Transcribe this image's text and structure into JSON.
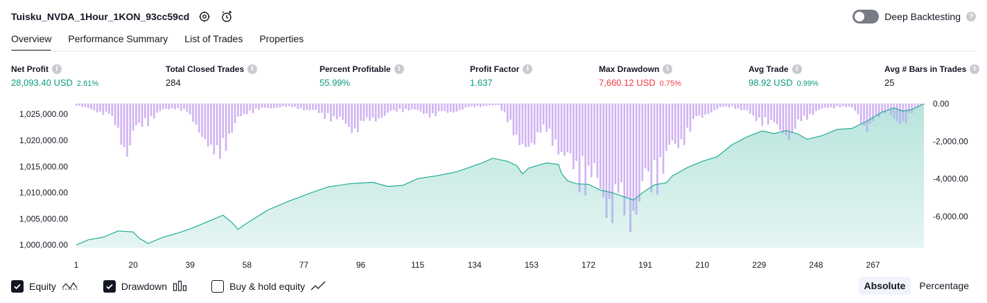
{
  "header": {
    "title": "Tuisku_NVDA_1Hour_1KON_93cc59cd",
    "deep_backtesting_label": "Deep Backtesting",
    "help_glyph": "?"
  },
  "tabs": [
    {
      "label": "Overview",
      "active": true
    },
    {
      "label": "Performance Summary",
      "active": false
    },
    {
      "label": "List of Trades",
      "active": false
    },
    {
      "label": "Properties",
      "active": false
    }
  ],
  "metrics": {
    "info_glyph": "i",
    "net_profit": {
      "label": "Net Profit",
      "value": "28,093.40 USD",
      "pct": "2.81%"
    },
    "total_closed_trades": {
      "label": "Total Closed Trades",
      "value": "284"
    },
    "percent_profitable": {
      "label": "Percent Profitable",
      "value": "55.99%"
    },
    "profit_factor": {
      "label": "Profit Factor",
      "value": "1.637"
    },
    "max_drawdown": {
      "label": "Max Drawdown",
      "value": "7,660.12 USD",
      "pct": "0.75%"
    },
    "avg_trade": {
      "label": "Avg Trade",
      "value": "98.92 USD",
      "pct": "0.99%"
    },
    "avg_bars": {
      "label": "Avg # Bars in Trades",
      "value": "25"
    }
  },
  "colors": {
    "positive": "#089981",
    "negative": "#f23645",
    "equity_line": "#22ab94",
    "drawdown_bar": "#d1b3f2",
    "drawdown_overlap": "#b6b9ec"
  },
  "chart_data": {
    "type": "area",
    "trade_count": 284,
    "x_ticks": [
      "1",
      "20",
      "39",
      "58",
      "77",
      "96",
      "115",
      "134",
      "153",
      "172",
      "191",
      "210",
      "229",
      "248",
      "267"
    ],
    "left_axis": {
      "ticks": [
        "1,025,000.00",
        "1,020,000.00",
        "1,015,000.00",
        "1,010,000.00",
        "1,005,000.00",
        "1,000,000.00"
      ],
      "range": [
        999500,
        1027000
      ]
    },
    "right_axis": {
      "ticks": [
        "0.00",
        "-2,000.00",
        "-4,000.00",
        "-6,000.00"
      ],
      "range": [
        -7660,
        0
      ]
    },
    "equity_points": [
      [
        1,
        1000000
      ],
      [
        5,
        1001000
      ],
      [
        10,
        1001500
      ],
      [
        15,
        1002700
      ],
      [
        20,
        1002500
      ],
      [
        22,
        1001300
      ],
      [
        25,
        1000300
      ],
      [
        30,
        1001500
      ],
      [
        35,
        1002300
      ],
      [
        40,
        1003300
      ],
      [
        45,
        1004500
      ],
      [
        50,
        1005700
      ],
      [
        53,
        1004300
      ],
      [
        55,
        1003000
      ],
      [
        58,
        1004200
      ],
      [
        65,
        1006700
      ],
      [
        72,
        1008400
      ],
      [
        80,
        1010100
      ],
      [
        85,
        1011100
      ],
      [
        92,
        1011700
      ],
      [
        100,
        1012000
      ],
      [
        105,
        1011200
      ],
      [
        110,
        1011400
      ],
      [
        115,
        1012700
      ],
      [
        122,
        1013300
      ],
      [
        128,
        1014000
      ],
      [
        133,
        1015000
      ],
      [
        137,
        1015800
      ],
      [
        140,
        1016600
      ],
      [
        145,
        1016000
      ],
      [
        148,
        1015200
      ],
      [
        150,
        1013600
      ],
      [
        152,
        1014700
      ],
      [
        158,
        1015700
      ],
      [
        162,
        1015400
      ],
      [
        163,
        1013700
      ],
      [
        165,
        1012300
      ],
      [
        168,
        1011700
      ],
      [
        172,
        1011600
      ],
      [
        176,
        1010500
      ],
      [
        180,
        1010000
      ],
      [
        184,
        1009200
      ],
      [
        187,
        1008600
      ],
      [
        190,
        1010000
      ],
      [
        194,
        1011500
      ],
      [
        198,
        1011900
      ],
      [
        200,
        1013200
      ],
      [
        205,
        1014800
      ],
      [
        210,
        1016000
      ],
      [
        215,
        1016900
      ],
      [
        220,
        1019200
      ],
      [
        225,
        1020700
      ],
      [
        230,
        1021800
      ],
      [
        234,
        1021300
      ],
      [
        238,
        1021900
      ],
      [
        242,
        1021200
      ],
      [
        245,
        1020200
      ],
      [
        250,
        1020900
      ],
      [
        255,
        1022100
      ],
      [
        260,
        1022300
      ],
      [
        265,
        1023700
      ],
      [
        270,
        1025400
      ],
      [
        274,
        1026200
      ],
      [
        277,
        1025600
      ],
      [
        280,
        1025900
      ],
      [
        284,
        1027000
      ]
    ],
    "drawdown_points": [
      [
        1,
        -100
      ],
      [
        4,
        -300
      ],
      [
        8,
        -500
      ],
      [
        12,
        -800
      ],
      [
        15,
        -1900
      ],
      [
        18,
        -3300
      ],
      [
        20,
        -2200
      ],
      [
        23,
        -1500
      ],
      [
        25,
        -1200
      ],
      [
        28,
        -700
      ],
      [
        31,
        -400
      ],
      [
        34,
        -300
      ],
      [
        37,
        -500
      ],
      [
        40,
        -1200
      ],
      [
        43,
        -2000
      ],
      [
        45,
        -2900
      ],
      [
        47,
        -4500
      ],
      [
        49,
        -3300
      ],
      [
        52,
        -2200
      ],
      [
        55,
        -1200
      ],
      [
        58,
        -600
      ],
      [
        62,
        -400
      ],
      [
        66,
        -300
      ],
      [
        70,
        -200
      ],
      [
        75,
        -300
      ],
      [
        80,
        -500
      ],
      [
        85,
        -900
      ],
      [
        90,
        -1300
      ],
      [
        94,
        -1800
      ],
      [
        97,
        -1400
      ],
      [
        100,
        -1100
      ],
      [
        104,
        -800
      ],
      [
        108,
        -500
      ],
      [
        112,
        -400
      ],
      [
        116,
        -600
      ],
      [
        120,
        -800
      ],
      [
        125,
        -600
      ],
      [
        130,
        -400
      ],
      [
        134,
        -200
      ],
      [
        138,
        -150
      ],
      [
        142,
        -100
      ],
      [
        145,
        -1000
      ],
      [
        147,
        -2100
      ],
      [
        149,
        -3600
      ],
      [
        151,
        -2800
      ],
      [
        154,
        -2400
      ],
      [
        157,
        -2000
      ],
      [
        160,
        -2400
      ],
      [
        162,
        -2900
      ],
      [
        164,
        -3800
      ],
      [
        166,
        -4500
      ],
      [
        168,
        -4700
      ],
      [
        171,
        -5100
      ],
      [
        174,
        -5700
      ],
      [
        177,
        -6200
      ],
      [
        179,
        -6900
      ],
      [
        182,
        -7400
      ],
      [
        184,
        -7660
      ],
      [
        186,
        -7300
      ],
      [
        188,
        -6900
      ],
      [
        190,
        -6400
      ],
      [
        192,
        -6000
      ],
      [
        194,
        -5200
      ],
      [
        196,
        -4500
      ],
      [
        199,
        -3500
      ],
      [
        202,
        -2800
      ],
      [
        205,
        -2000
      ],
      [
        208,
        -1200
      ],
      [
        212,
        -600
      ],
      [
        216,
        -300
      ],
      [
        220,
        -200
      ],
      [
        224,
        -500
      ],
      [
        227,
        -900
      ],
      [
        230,
        -1200
      ],
      [
        233,
        -1500
      ],
      [
        236,
        -1700
      ],
      [
        238,
        -2000
      ],
      [
        240,
        -2300
      ],
      [
        242,
        -1500
      ],
      [
        245,
        -900
      ],
      [
        248,
        -500
      ],
      [
        252,
        -300
      ],
      [
        256,
        -200
      ],
      [
        260,
        -300
      ],
      [
        262,
        -700
      ],
      [
        264,
        -1600
      ],
      [
        266,
        -1800
      ],
      [
        268,
        -1100
      ],
      [
        270,
        -700
      ],
      [
        272,
        -400
      ],
      [
        274,
        -1000
      ],
      [
        276,
        -1900
      ],
      [
        278,
        -1200
      ],
      [
        280,
        -500
      ],
      [
        282,
        -200
      ],
      [
        284,
        0
      ]
    ],
    "series": [
      {
        "name": "Equity",
        "type": "area"
      },
      {
        "name": "Drawdown",
        "type": "bar"
      }
    ],
    "grid": false,
    "legend_placement": "bottom-left"
  },
  "legend": {
    "equity_label": "Equity",
    "drawdown_label": "Drawdown",
    "buyhold_label": "Buy & hold equity",
    "equity_checked": true,
    "drawdown_checked": true,
    "buyhold_checked": false
  },
  "scale": {
    "absolute_label": "Absolute",
    "percentage_label": "Percentage",
    "selected": "Absolute"
  }
}
